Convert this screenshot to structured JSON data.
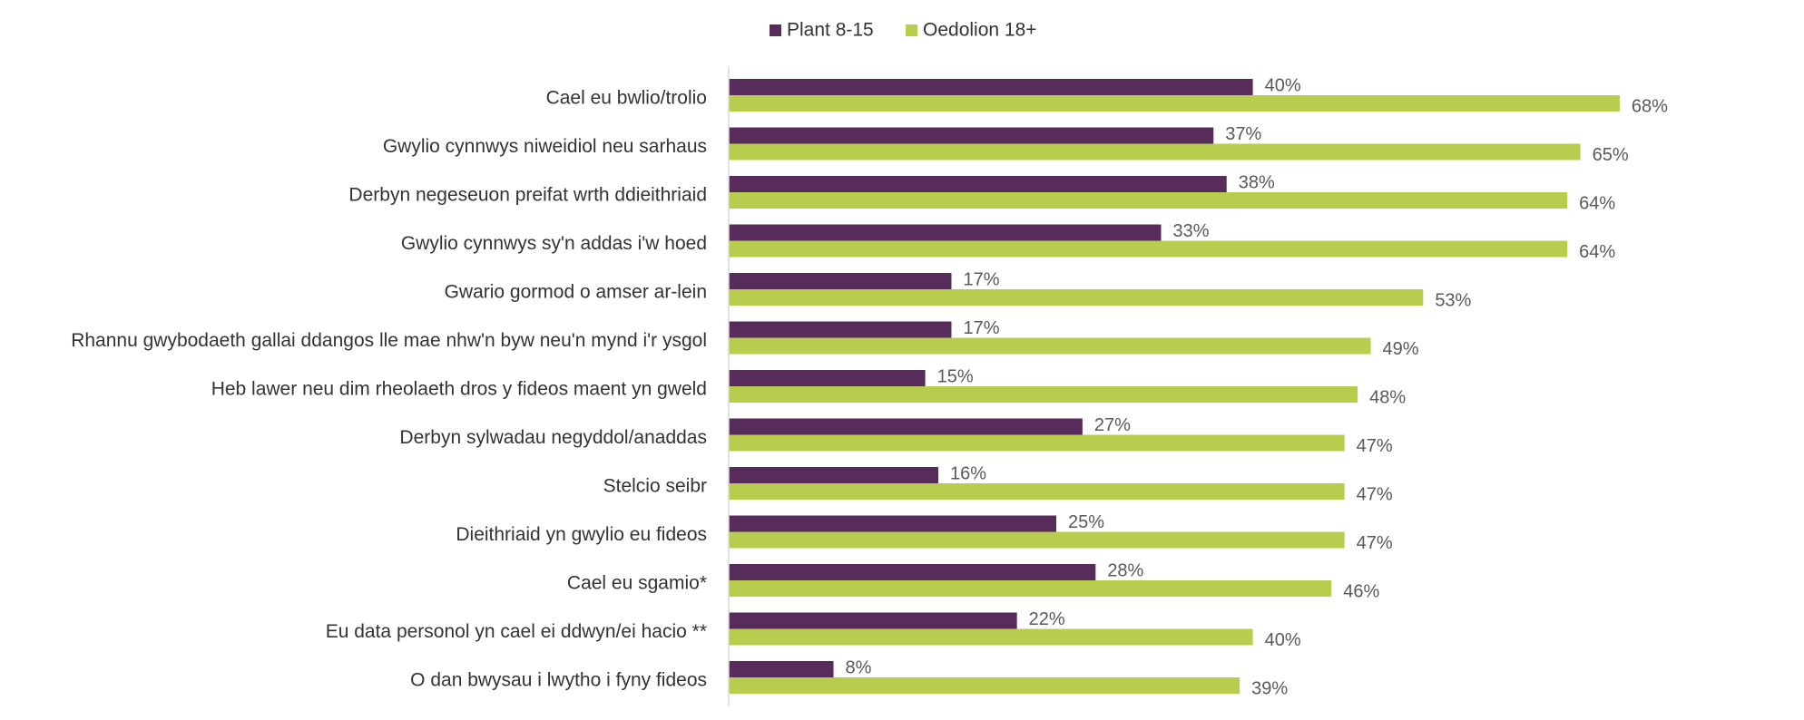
{
  "chart_data": {
    "type": "bar",
    "orientation": "horizontal",
    "categories": [
      "Cael eu bwlio/trolio",
      "Gwylio cynnwys niweidiol neu sarhaus",
      "Derbyn negeseuon preifat wrth ddieithriaid",
      "Gwylio cynnwys sy'n addas i'w hoed",
      "Gwario gormod o amser ar-lein",
      "Rhannu gwybodaeth gallai ddangos lle mae nhw'n byw neu'n mynd i'r ysgol",
      "Heb lawer neu dim rheolaeth dros y fideos maent yn gweld",
      "Derbyn sylwadau negyddol/anaddas",
      "Stelcio seibr",
      "Dieithriaid yn gwylio eu fideos",
      "Cael eu sgamio*",
      "Eu data personol yn cael ei ddwyn/ei hacio **",
      "O dan bwysau i lwytho i fyny fideos"
    ],
    "series": [
      {
        "name": "Plant 8-15",
        "color": "#582c5a",
        "values": [
          40,
          37,
          38,
          33,
          17,
          17,
          15,
          27,
          16,
          25,
          28,
          22,
          8
        ],
        "labels": [
          "40%",
          "37%",
          "38%",
          "33%",
          "17%",
          "17%",
          "15%",
          "27%",
          "16%",
          "25%",
          "28%",
          "22%",
          "8%"
        ]
      },
      {
        "name": "Oedolion 18+",
        "color": "#b8cd4d",
        "values": [
          68,
          65,
          64,
          64,
          53,
          49,
          48,
          47,
          47,
          47,
          46,
          40,
          39
        ],
        "labels": [
          "68%",
          "65%",
          "64%",
          "64%",
          "53%",
          "49%",
          "48%",
          "47%",
          "47%",
          "47%",
          "46%",
          "40%",
          "39%"
        ]
      }
    ],
    "xlim": [
      0,
      100
    ],
    "value_unit": "%",
    "gridlines": false,
    "legend_position": "top-center",
    "title": "",
    "xlabel": "",
    "ylabel": ""
  },
  "colors": {
    "axis": "#d9d9d9",
    "category_text": "#333333",
    "value_text": "#595959"
  }
}
